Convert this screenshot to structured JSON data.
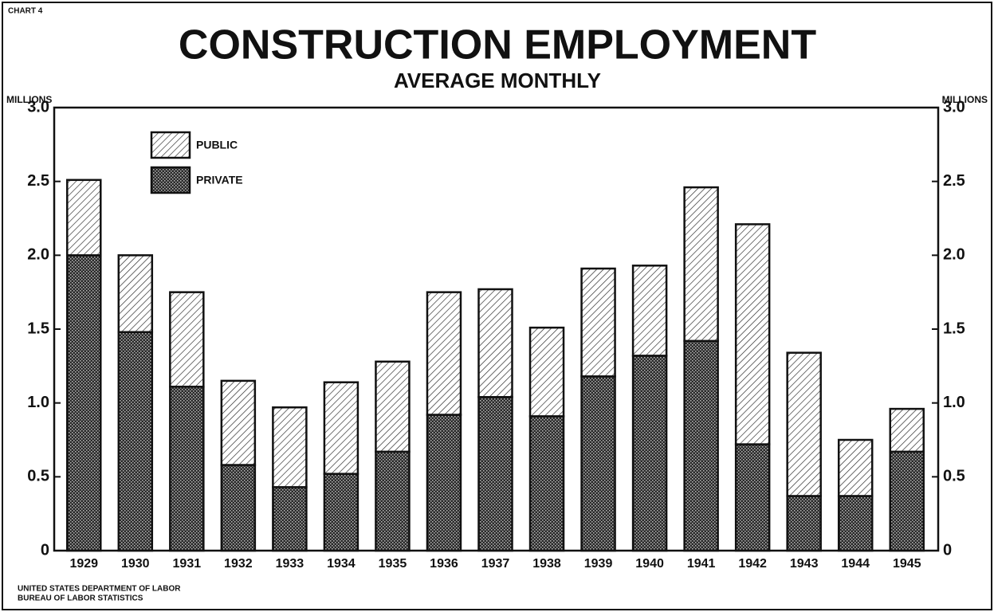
{
  "chart_data": {
    "type": "stacked_bar",
    "label": "CHART 4",
    "title": "CONSTRUCTION EMPLOYMENT",
    "subtitle": "AVERAGE MONTHLY",
    "y_label": "MILLIONS",
    "y2_label": "MILLIONS",
    "source": [
      "UNITED STATES DEPARTMENT OF LABOR",
      "BUREAU OF LABOR STATISTICS"
    ],
    "categories": [
      "1929",
      "1930",
      "1931",
      "1932",
      "1933",
      "1934",
      "1935",
      "1936",
      "1937",
      "1938",
      "1939",
      "1940",
      "1941",
      "1942",
      "1943",
      "1944",
      "1945"
    ],
    "series": [
      {
        "name": "PRIVATE",
        "color": "#1a1a1a",
        "pattern": "crosshatch",
        "values": [
          2.0,
          1.48,
          1.11,
          0.58,
          0.43,
          0.52,
          0.67,
          0.92,
          1.04,
          0.91,
          1.18,
          1.32,
          1.42,
          0.72,
          0.37,
          0.37,
          0.67
        ]
      },
      {
        "name": "PUBLIC",
        "color": "#ffffff",
        "pattern": "hatch",
        "values": [
          0.51,
          0.52,
          0.64,
          0.57,
          0.54,
          0.62,
          0.61,
          0.83,
          0.73,
          0.6,
          0.73,
          0.61,
          1.04,
          1.49,
          0.97,
          0.38,
          0.29
        ]
      }
    ],
    "ylim": [
      0,
      3
    ],
    "yticks": [
      0,
      0.5,
      {
        "value": 1,
        "label": "1.0"
      },
      1.5,
      {
        "value": 2,
        "label": "2.0"
      },
      2.5,
      {
        "value": 3,
        "label": "3.0"
      }
    ],
    "y2lim": [
      0,
      3
    ],
    "y2ticks": [
      0,
      0.5,
      {
        "value": 1,
        "label": "1.0"
      },
      1.5,
      {
        "value": 2,
        "label": "2.0"
      },
      2.5,
      {
        "value": 3,
        "label": "3.0"
      }
    ],
    "grid": false
  }
}
